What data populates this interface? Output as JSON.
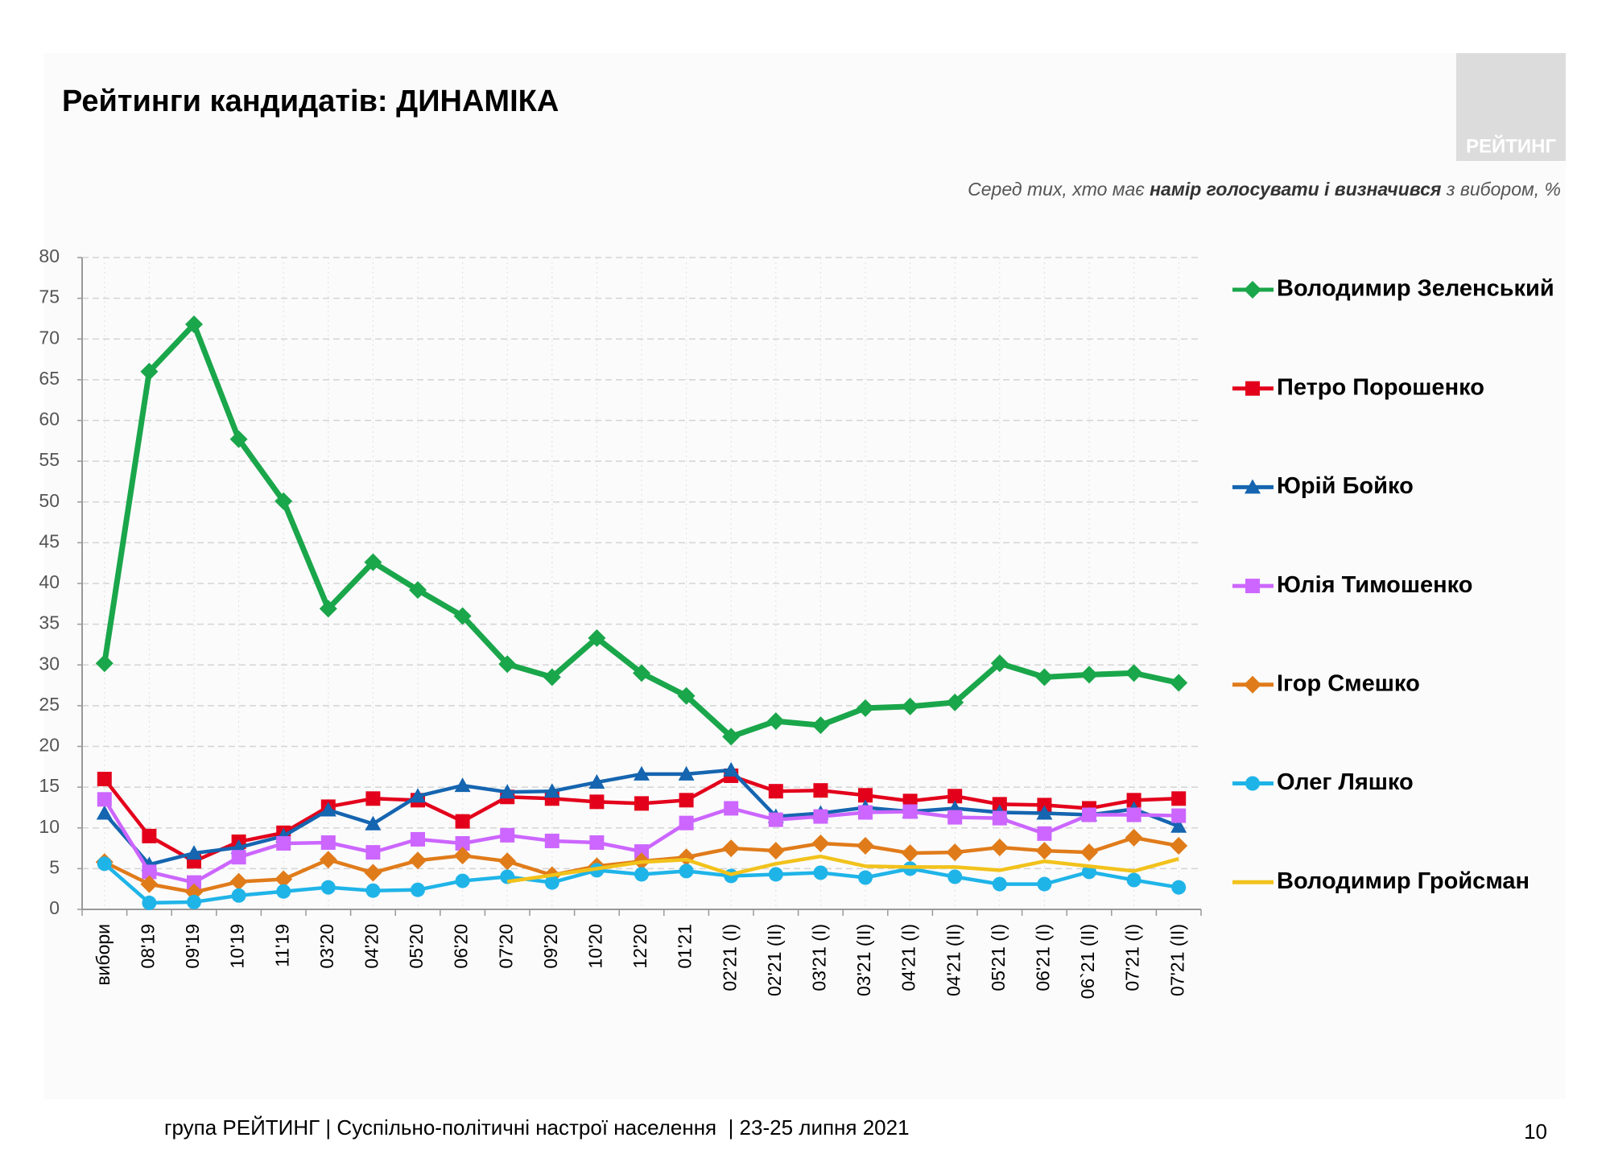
{
  "chart_data": {
    "type": "line",
    "title": "Рейтинги кандидатів: ДИНАМІКА",
    "logo": "РЕЙТИНГ",
    "subtitle": [
      "Серед тих, хто має ",
      "намір голосувати і визначився",
      " з вибором, %"
    ],
    "footer": "група РЕЙТИНГ | Суспільно-політичні настрої населення  | 23-25 липня 2021",
    "page_number": "10",
    "categories": [
      "вибори",
      "08'19",
      "09'19",
      "10'19",
      "11'19",
      "03'20",
      "04'20",
      "05'20",
      "06'20",
      "07'20",
      "09'20",
      "10'20",
      "12'20",
      "01'21",
      "02'21 (I)",
      "02'21 (II)",
      "03'21 (I)",
      "03'21 (II)",
      "04'21 (I)",
      "04'21 (II)",
      "05'21 (I)",
      "06'21 (I)",
      "06`21 (II)",
      "07'21 (I)",
      "07'21 (II)"
    ],
    "ylim": [
      0,
      80
    ],
    "yticks": [
      0,
      5,
      10,
      15,
      20,
      25,
      30,
      35,
      40,
      45,
      50,
      55,
      60,
      65,
      70,
      75,
      80
    ],
    "grid": true,
    "legend": "right",
    "series": [
      {
        "name": "Володимир Зеленський",
        "color": "#1aa64a",
        "marker": "diamond",
        "values": [
          30.2,
          66,
          71.8,
          57.7,
          50.1,
          36.9,
          42.6,
          39.2,
          36.0,
          30.1,
          28.5,
          33.3,
          29.0,
          26.2,
          21.2,
          23.1,
          22.6,
          24.7,
          24.9,
          25.4,
          30.2,
          28.5,
          28.8,
          29.0,
          27.8
        ]
      },
      {
        "name": "Петро Порошенко",
        "color": "#e3001b",
        "marker": "square",
        "values": [
          16.0,
          9.0,
          5.9,
          8.3,
          9.4,
          12.6,
          13.6,
          13.4,
          10.8,
          13.8,
          13.6,
          13.2,
          13.0,
          13.4,
          16.4,
          14.5,
          14.6,
          14.0,
          13.3,
          13.9,
          12.9,
          12.8,
          12.4,
          13.4,
          13.6
        ]
      },
      {
        "name": "Юрій Бойко",
        "color": "#1565b0",
        "marker": "triangle",
        "values": [
          11.8,
          5.5,
          6.9,
          7.6,
          9.0,
          12.2,
          10.5,
          13.9,
          15.2,
          14.4,
          14.5,
          15.6,
          16.6,
          16.6,
          17.1,
          11.4,
          11.8,
          12.5,
          12.0,
          12.4,
          11.9,
          11.8,
          11.6,
          12.3,
          10.2
        ]
      },
      {
        "name": "Юлія Тимошенко",
        "color": "#cc66ff",
        "marker": "square",
        "values": [
          13.5,
          4.6,
          3.3,
          6.4,
          8.1,
          8.2,
          7.0,
          8.6,
          8.1,
          9.1,
          8.4,
          8.2,
          7.1,
          10.6,
          12.4,
          11.0,
          11.4,
          11.9,
          12.0,
          11.3,
          11.2,
          9.3,
          11.6,
          11.6,
          11.5
        ]
      },
      {
        "name": "Ігор Смешко",
        "color": "#e07b1a",
        "marker": "diamond",
        "values": [
          5.8,
          3.1,
          2.1,
          3.4,
          3.7,
          6.1,
          4.5,
          6.0,
          6.6,
          5.9,
          4.2,
          5.3,
          5.9,
          6.4,
          7.5,
          7.2,
          8.1,
          7.8,
          6.9,
          7.0,
          7.6,
          7.2,
          7.0,
          8.8,
          7.8
        ]
      },
      {
        "name": "Олег Ляшко",
        "color": "#1fb4e8",
        "marker": "circle",
        "values": [
          5.6,
          0.8,
          0.9,
          1.7,
          2.2,
          2.7,
          2.3,
          2.4,
          3.5,
          4.0,
          3.3,
          4.8,
          4.3,
          4.7,
          4.1,
          4.3,
          4.5,
          3.9,
          5.0,
          4.0,
          3.1,
          3.1,
          4.6,
          3.6,
          2.7
        ]
      },
      {
        "name": "Володимир Гройсман",
        "color": "#f2c21b",
        "marker": "none",
        "values": [
          null,
          null,
          null,
          null,
          null,
          null,
          null,
          null,
          null,
          3.4,
          4.2,
          5.0,
          5.8,
          6.1,
          4.3,
          5.6,
          6.5,
          5.3,
          5.2,
          5.2,
          4.8,
          5.9,
          5.3,
          4.7,
          6.2
        ]
      }
    ]
  }
}
